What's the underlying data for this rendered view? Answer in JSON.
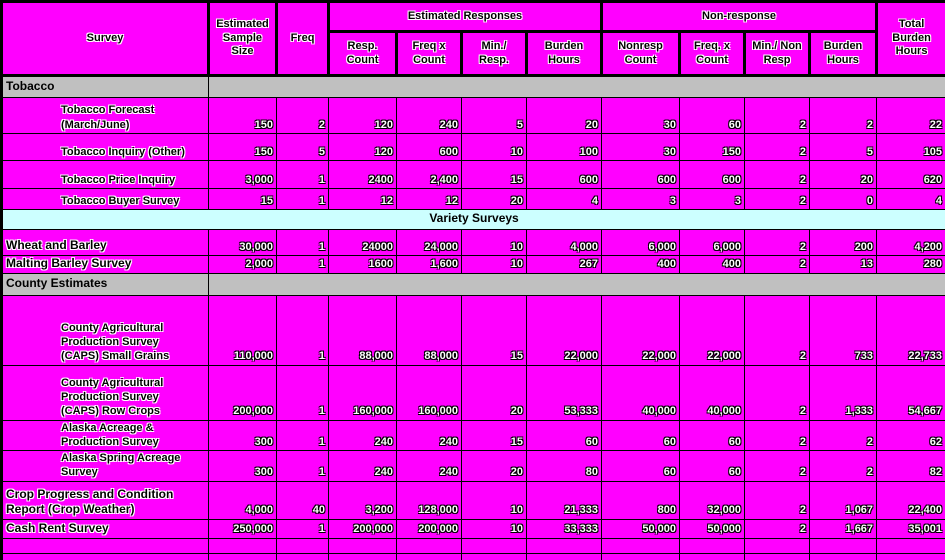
{
  "colors": {
    "cell_magenta": "#FF00FF",
    "section_gray": "#C0C0C0",
    "band_cyan": "#CCFFFF",
    "border_black": "#000000",
    "number_text_white": "#FFFFFF",
    "label_text_black": "#000000"
  },
  "table": {
    "header": {
      "survey": "Survey",
      "est_sample_size": "Estimated\nSample\nSize",
      "freq": "Freq",
      "est_responses_group": "Estimated Responses",
      "non_response_group": "Non-response",
      "total_burden": "Total\nBurden\nHours",
      "sub": {
        "resp_count": "Resp.\nCount",
        "freq_x_count": "Freq x\nCount",
        "min_resp": "Min./\nResp.",
        "burden_hours": "Burden\nHours",
        "nonresp_count": "Nonresp\nCount",
        "nr_freq_x_count": "Freq. x\nCount",
        "min_non_resp": "Min./ Non\nResp",
        "nr_burden_hours": "Burden\nHours"
      }
    },
    "rows": [
      {
        "type": "section",
        "label": "Tobacco"
      },
      {
        "type": "data",
        "indent": true,
        "label": "Tobacco Forecast\n(March/June)",
        "values": [
          "150",
          "2",
          "120",
          "240",
          "5",
          "20",
          "30",
          "60",
          "2",
          "2",
          "22"
        ]
      },
      {
        "type": "data",
        "indent": true,
        "label": "Tobacco Inquiry (Other)",
        "values": [
          "150",
          "5",
          "120",
          "600",
          "10",
          "100",
          "30",
          "150",
          "2",
          "5",
          "105"
        ]
      },
      {
        "type": "data",
        "indent": true,
        "label": "Tobacco Price Inquiry",
        "values": [
          "3,000",
          "1",
          "2400",
          "2,400",
          "15",
          "600",
          "600",
          "600",
          "2",
          "20",
          "620"
        ]
      },
      {
        "type": "data",
        "indent": true,
        "label": "Tobacco Buyer Survey",
        "values": [
          "15",
          "1",
          "12",
          "12",
          "20",
          "4",
          "3",
          "3",
          "2",
          "0",
          "4"
        ]
      },
      {
        "type": "band",
        "label": "Variety Surveys"
      },
      {
        "type": "data",
        "bold": true,
        "label": "Wheat and Barley",
        "values": [
          "30,000",
          "1",
          "24000",
          "24,000",
          "10",
          "4,000",
          "6,000",
          "6,000",
          "2",
          "200",
          "4,200"
        ]
      },
      {
        "type": "data",
        "bold": true,
        "label": "Malting Barley Survey",
        "values": [
          "2,000",
          "1",
          "1600",
          "1,600",
          "10",
          "267",
          "400",
          "400",
          "2",
          "13",
          "280"
        ]
      },
      {
        "type": "section",
        "label": "County Estimates"
      },
      {
        "type": "data",
        "indent": true,
        "label": "County Agricultural\nProduction Survey\n(CAPS) Small Grains",
        "values": [
          "110,000",
          "1",
          "88,000",
          "88,000",
          "15",
          "22,000",
          "22,000",
          "22,000",
          "2",
          "733",
          "22,733"
        ]
      },
      {
        "type": "data",
        "indent": true,
        "label": "County Agricultural\nProduction Survey\n(CAPS) Row Crops",
        "values": [
          "200,000",
          "1",
          "160,000",
          "160,000",
          "20",
          "53,333",
          "40,000",
          "40,000",
          "2",
          "1,333",
          "54,667"
        ]
      },
      {
        "type": "data",
        "indent": true,
        "label": "Alaska Acreage &\nProduction Survey",
        "values": [
          "300",
          "1",
          "240",
          "240",
          "15",
          "60",
          "60",
          "60",
          "2",
          "2",
          "62"
        ]
      },
      {
        "type": "data",
        "indent": true,
        "label": "Alaska Spring Acreage\nSurvey",
        "values": [
          "300",
          "1",
          "240",
          "240",
          "20",
          "80",
          "60",
          "60",
          "2",
          "2",
          "82"
        ]
      },
      {
        "type": "data",
        "bold": true,
        "label": "Crop Progress and Condition\nReport (Crop Weather)",
        "values": [
          "4,000",
          "40",
          "3,200",
          "128,000",
          "10",
          "21,333",
          "800",
          "32,000",
          "2",
          "1,067",
          "22,400"
        ]
      },
      {
        "type": "data",
        "bold": true,
        "label": "Cash Rent Survey",
        "values": [
          "250,000",
          "1",
          "200,000",
          "200,000",
          "10",
          "33,333",
          "50,000",
          "50,000",
          "2",
          "1,667",
          "35,001"
        ]
      },
      {
        "type": "empty"
      },
      {
        "type": "empty"
      }
    ]
  }
}
